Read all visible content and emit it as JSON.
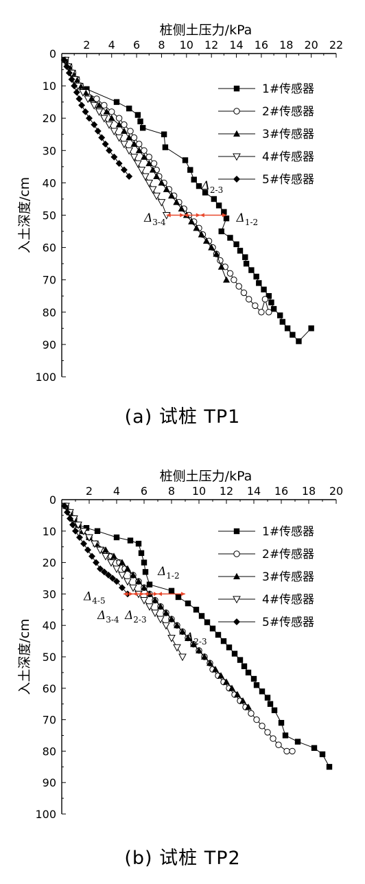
{
  "chart_data": [
    {
      "type": "line",
      "caption": "(a) 试桩 TP1",
      "xlabel": "桩侧土压力/kPa",
      "ylabel": "入土深度/cm",
      "xlim": [
        0,
        22
      ],
      "ylim": [
        0,
        100
      ],
      "x_axis_position": "top",
      "y_inverted": true,
      "grid": false,
      "legend_position": "right",
      "xticks": [
        2,
        4,
        6,
        8,
        10,
        12,
        14,
        16,
        18,
        20,
        22
      ],
      "yticks": [
        0,
        10,
        20,
        30,
        40,
        50,
        60,
        70,
        80,
        90,
        100
      ],
      "series": [
        {
          "name": "1#传感器",
          "marker": "square-filled",
          "color": "#000000",
          "x": [
            0.3,
            0.6,
            0.9,
            1.2,
            1.5,
            2.0,
            4.4,
            5.4,
            6.1,
            6.3,
            6.5,
            8.2,
            8.3,
            9.9,
            10.3,
            10.6,
            11.0,
            11.5,
            12.2,
            12.6,
            13.0,
            13.2,
            12.8,
            13.5,
            14.0,
            14.3,
            14.7,
            14.8,
            15.2,
            15.6,
            15.8,
            16.2,
            16.6,
            16.8,
            17.0,
            17.5,
            17.7,
            18.1,
            18.5,
            19.0,
            20.0
          ],
          "y": [
            2,
            4,
            6,
            8,
            10,
            11,
            15,
            17,
            19,
            21,
            23,
            25,
            29,
            33,
            36,
            39,
            41,
            43,
            45,
            47,
            49,
            51,
            55,
            57,
            59,
            61,
            63,
            65,
            67,
            69,
            71,
            73,
            75,
            77,
            79,
            81,
            83,
            85,
            87,
            89,
            85
          ]
        },
        {
          "name": "2#传感器",
          "marker": "circle-open",
          "color": "#000000",
          "x": [
            0.3,
            0.6,
            0.9,
            1.2,
            1.5,
            2.0,
            2.8,
            3.4,
            4.0,
            4.6,
            5.0,
            5.5,
            5.8,
            6.2,
            6.6,
            7.0,
            7.4,
            7.6,
            7.8,
            8.2,
            8.6,
            9.0,
            9.4,
            9.8,
            10.2,
            10.6,
            11.0,
            11.3,
            11.8,
            12.1,
            12.4,
            12.7,
            13.1,
            13.5,
            13.8,
            14.2,
            14.6,
            15.0,
            15.5,
            16.0,
            16.3,
            16.6
          ],
          "y": [
            2,
            4,
            6,
            8,
            10,
            12,
            14,
            16,
            18,
            20,
            22,
            24,
            26,
            28,
            30,
            32,
            34,
            36,
            38,
            40,
            42,
            44,
            46,
            48,
            50,
            52,
            54,
            56,
            58,
            60,
            62,
            64,
            66,
            68,
            70,
            72,
            74,
            76,
            78,
            80,
            76,
            80
          ]
        },
        {
          "name": "3#传感器",
          "marker": "triangle-filled",
          "color": "#000000",
          "x": [
            0.3,
            0.6,
            0.9,
            1.2,
            1.5,
            1.9,
            2.4,
            3.0,
            3.6,
            4.0,
            4.6,
            5.0,
            5.4,
            5.8,
            6.2,
            6.6,
            7.0,
            7.3,
            7.6,
            8.0,
            8.4,
            8.8,
            9.2,
            9.6,
            10.0,
            10.4,
            10.8,
            11.2,
            11.6,
            12.0,
            12.4,
            12.8,
            13.2
          ],
          "y": [
            2,
            4,
            6,
            8,
            10,
            12,
            14,
            16,
            18,
            20,
            22,
            24,
            26,
            28,
            30,
            32,
            34,
            36,
            38,
            40,
            42,
            44,
            46,
            48,
            50,
            52,
            54,
            56,
            58,
            60,
            62,
            66,
            70
          ]
        },
        {
          "name": "4#传感器",
          "marker": "triangle-down-open",
          "color": "#000000",
          "x": [
            0.3,
            0.5,
            0.8,
            1.0,
            1.3,
            1.7,
            2.1,
            2.6,
            3.0,
            3.4,
            3.8,
            4.2,
            4.6,
            5.0,
            5.4,
            5.8,
            6.1,
            6.4,
            6.7,
            7.0,
            7.3,
            7.6,
            8.0,
            8.4
          ],
          "y": [
            2,
            4,
            6,
            8,
            10,
            12,
            14,
            16,
            18,
            20,
            22,
            24,
            26,
            28,
            30,
            32,
            34,
            36,
            38,
            40,
            42,
            44,
            46,
            50
          ]
        },
        {
          "name": "5#传感器",
          "marker": "diamond-filled",
          "color": "#000000",
          "x": [
            0.2,
            0.4,
            0.6,
            0.8,
            1.0,
            1.2,
            1.4,
            1.6,
            1.9,
            2.2,
            2.6,
            2.9,
            3.2,
            3.5,
            3.8,
            4.2,
            4.6,
            5.0,
            5.4
          ],
          "y": [
            2,
            4,
            6,
            8,
            10,
            12,
            14,
            16,
            18,
            20,
            22,
            24,
            26,
            28,
            30,
            32,
            34,
            36,
            38
          ]
        }
      ],
      "annotations": [
        {
          "text": "Δ",
          "sub": "1-2",
          "label_x": 14.0,
          "label_y": 52,
          "y": 50,
          "from_x": 11.1,
          "to_x": 13.2,
          "color": "#e8482c"
        },
        {
          "text": "Δ",
          "sub": "2-3",
          "label_x": 11.2,
          "label_y": 42,
          "y": 50,
          "from_x": 9.8,
          "to_x": 11.1,
          "color": "#e8482c"
        },
        {
          "text": "Δ",
          "sub": "3-4",
          "label_x": 6.6,
          "label_y": 52,
          "y": 50,
          "from_x": 8.4,
          "to_x": 9.8,
          "color": "#e8482c"
        }
      ]
    },
    {
      "type": "line",
      "caption": "(b) 试桩 TP2",
      "xlabel": "桩侧土压力/kPa",
      "ylabel": "入土深度/cm",
      "xlim": [
        0,
        20
      ],
      "ylim": [
        0,
        100
      ],
      "x_axis_position": "top",
      "y_inverted": true,
      "grid": false,
      "legend_position": "right",
      "xticks": [
        2,
        4,
        6,
        8,
        10,
        12,
        14,
        16,
        18,
        20
      ],
      "yticks": [
        0,
        10,
        20,
        30,
        40,
        50,
        60,
        70,
        80,
        90,
        100
      ],
      "series": [
        {
          "name": "1#传感器",
          "marker": "square-filled",
          "color": "#000000",
          "x": [
            0.3,
            0.6,
            0.9,
            1.2,
            1.8,
            2.6,
            4.0,
            5.0,
            5.6,
            5.8,
            6.0,
            6.1,
            6.4,
            8.0,
            8.5,
            9.2,
            9.8,
            10.2,
            10.6,
            11.0,
            11.4,
            11.8,
            12.2,
            12.6,
            13.0,
            13.3,
            13.6,
            14.0,
            14.2,
            14.6,
            15.0,
            15.2,
            15.5,
            16.0,
            16.3,
            17.2,
            18.4,
            19.0,
            19.5
          ],
          "y": [
            2,
            4,
            6,
            8,
            9,
            10,
            12,
            13,
            14,
            17,
            20,
            23,
            27,
            29,
            31,
            33,
            35,
            37,
            39,
            41,
            43,
            45,
            47,
            49,
            51,
            53,
            55,
            57,
            59,
            61,
            63,
            65,
            67,
            71,
            75,
            77,
            79,
            81,
            85
          ]
        },
        {
          "name": "2#传感器",
          "marker": "circle-open",
          "color": "#000000",
          "x": [
            0.3,
            0.6,
            0.9,
            1.2,
            1.5,
            2.0,
            2.5,
            3.0,
            3.6,
            4.2,
            4.6,
            5.2,
            5.6,
            6.0,
            6.4,
            6.8,
            7.2,
            7.6,
            8.0,
            8.4,
            8.8,
            9.2,
            9.6,
            10.0,
            10.4,
            10.8,
            11.0,
            11.4,
            11.8,
            12.2,
            12.6,
            13.0,
            13.4,
            13.8,
            14.2,
            14.6,
            15.0,
            15.4,
            15.8,
            16.4,
            16.8
          ],
          "y": [
            2,
            4,
            6,
            8,
            10,
            12,
            14,
            16,
            18,
            20,
            22,
            24,
            26,
            28,
            30,
            32,
            34,
            36,
            38,
            40,
            42,
            44,
            46,
            48,
            50,
            52,
            54,
            56,
            58,
            60,
            62,
            64,
            66,
            68,
            70,
            72,
            74,
            76,
            78,
            80,
            80
          ]
        },
        {
          "name": "3#传感器",
          "marker": "triangle-filled",
          "color": "#000000",
          "x": [
            0.3,
            0.6,
            0.9,
            1.2,
            1.5,
            2.0,
            2.5,
            3.2,
            3.8,
            4.4,
            4.8,
            5.2,
            5.6,
            6.0,
            6.4,
            6.8,
            7.2,
            7.6,
            8.0,
            8.4,
            8.8,
            9.2,
            9.6,
            10.0,
            10.4,
            10.8,
            11.2,
            11.6,
            12.0,
            12.4,
            12.8,
            13.2,
            13.6
          ],
          "y": [
            2,
            4,
            6,
            8,
            10,
            12,
            14,
            16,
            18,
            20,
            22,
            24,
            26,
            28,
            30,
            32,
            34,
            36,
            38,
            40,
            42,
            44,
            46,
            48,
            50,
            52,
            54,
            56,
            58,
            60,
            62,
            64,
            66
          ]
        },
        {
          "name": "4#传感器",
          "marker": "triangle-down-open",
          "color": "#000000",
          "x": [
            0.3,
            0.6,
            0.9,
            1.2,
            1.6,
            2.0,
            2.4,
            2.8,
            3.2,
            3.6,
            4.0,
            4.4,
            4.8,
            5.2,
            5.6,
            6.0,
            6.4,
            6.8,
            7.2,
            7.6,
            8.0,
            8.4,
            8.8
          ],
          "y": [
            2,
            4,
            6,
            8,
            10,
            12,
            14,
            16,
            18,
            20,
            22,
            24,
            26,
            28,
            30,
            32,
            34,
            36,
            38,
            40,
            44,
            47,
            50
          ]
        },
        {
          "name": "5#传感器",
          "marker": "diamond-filled",
          "color": "#000000",
          "x": [
            0.2,
            0.4,
            0.6,
            0.8,
            1.0,
            1.3,
            1.6,
            1.9,
            2.2,
            2.5,
            2.8,
            3.1,
            3.4,
            3.7,
            4.0,
            4.4,
            4.8
          ],
          "y": [
            2,
            4,
            6,
            8,
            10,
            12,
            14,
            16,
            18,
            20,
            22,
            23,
            24,
            25,
            26,
            28,
            30
          ]
        }
      ],
      "annotations": [
        {
          "text": "Δ",
          "sub": "1-2",
          "label_x": 7.0,
          "label_y": 24,
          "y": 30,
          "from_x": 7.0,
          "to_x": 9.0,
          "color": "#e8482c"
        },
        {
          "text": "Δ",
          "sub": "2-3",
          "label_x": 4.6,
          "label_y": 38,
          "y": 30,
          "from_x": 6.0,
          "to_x": 7.0,
          "color": "#e8482c"
        },
        {
          "text": "Δ",
          "sub": "3-4",
          "label_x": 2.6,
          "label_y": 38,
          "y": 30,
          "from_x": 5.2,
          "to_x": 6.0,
          "color": "#e8482c"
        },
        {
          "text": "Δ",
          "sub": "4-5",
          "label_x": 1.6,
          "label_y": 32,
          "y": 30,
          "from_x": 4.5,
          "to_x": 5.2,
          "color": "#e8482c"
        },
        {
          "text": "Δ",
          "sub": "2-3",
          "label_x": 9.0,
          "label_y": 45,
          "y": 30,
          "from_x": null,
          "to_x": null,
          "color": "#000000"
        }
      ]
    }
  ]
}
